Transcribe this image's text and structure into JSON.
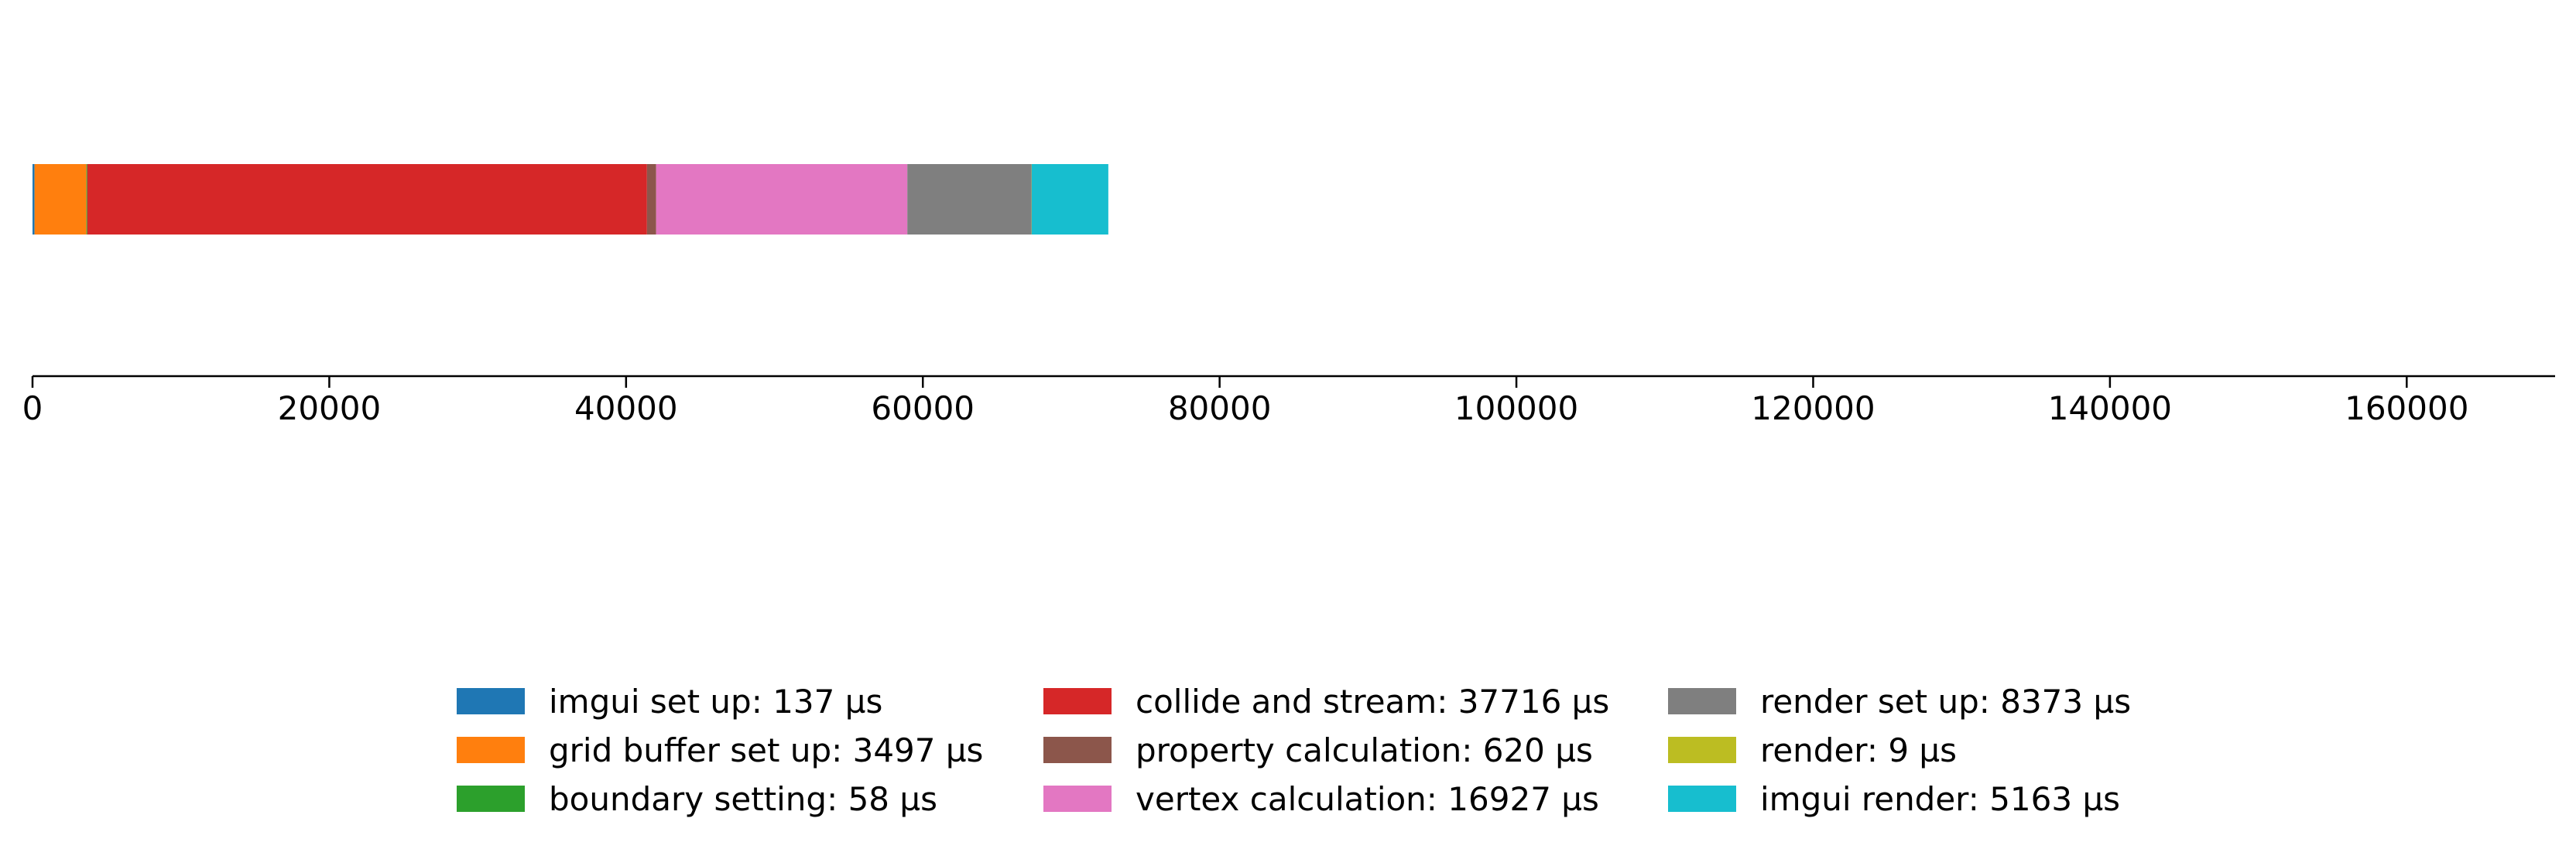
{
  "chart_data": {
    "type": "bar",
    "orientation": "horizontal",
    "stacked": true,
    "categories": [
      ""
    ],
    "series": [
      {
        "name": "imgui set up",
        "label": "imgui set up: 137 µs",
        "value": 137,
        "color": "#1f77b4"
      },
      {
        "name": "grid buffer set up",
        "label": "grid buffer set up: 3497 µs",
        "value": 3497,
        "color": "#ff7f0e"
      },
      {
        "name": "boundary setting",
        "label": "boundary setting: 58 µs",
        "value": 58,
        "color": "#2ca02c"
      },
      {
        "name": "collide and stream",
        "label": "collide and stream: 37716 µs",
        "value": 37716,
        "color": "#d62728"
      },
      {
        "name": "property calculation",
        "label": "property calculation: 620 µs",
        "value": 620,
        "color": "#8c564b"
      },
      {
        "name": "vertex calculation",
        "label": "vertex calculation: 16927 µs",
        "value": 16927,
        "color": "#e377c2"
      },
      {
        "name": "render set up",
        "label": "render set up: 8373 µs",
        "value": 8373,
        "color": "#7f7f7f"
      },
      {
        "name": "render",
        "label": "render: 9 µs",
        "value": 9,
        "color": "#bcbd22"
      },
      {
        "name": "imgui render",
        "label": "imgui render: 5163 µs",
        "value": 5163,
        "color": "#17becf"
      }
    ],
    "xlim": [
      0,
      170000
    ],
    "xticks": [
      0,
      20000,
      40000,
      60000,
      80000,
      100000,
      120000,
      140000,
      160000
    ],
    "xtick_labels": [
      "0",
      "20000",
      "40000",
      "60000",
      "80000",
      "100000",
      "120000",
      "140000",
      "160000"
    ],
    "title": "",
    "xlabel": "",
    "ylabel": "",
    "grid": false,
    "legend": {
      "placement": "bottom-center",
      "columns": 3
    }
  }
}
